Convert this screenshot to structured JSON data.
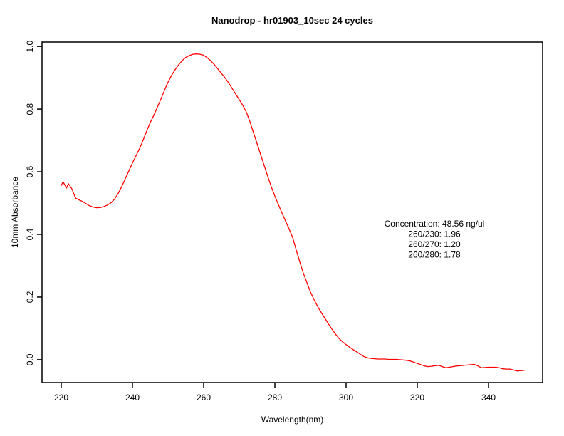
{
  "chart_data": {
    "type": "line",
    "title": "Nanodrop - hr01903_10sec 24 cycles",
    "xlabel": "Wavelength(nm)",
    "ylabel": "10mm Absorbance",
    "x_ticks": [
      220,
      240,
      260,
      280,
      300,
      320,
      340
    ],
    "y_ticks": [
      0,
      0.2,
      0.4,
      0.6,
      0.8,
      1.0
    ],
    "y_tick_labels": [
      "0.0",
      "0.2",
      "0.4",
      "0.6",
      "0.8",
      "1.0"
    ],
    "xlim": [
      214.6,
      355.2
    ],
    "ylim": [
      -0.073,
      1.014
    ],
    "grid": false,
    "legend": "none",
    "line_color": "#ff0000",
    "axis_color": "#000000",
    "background_color": "#ffffff",
    "series": [
      {
        "name": "absorbance",
        "x": [
          220,
          220.5,
          221,
          221.5,
          222,
          222.5,
          223,
          224,
          225,
          226,
          227,
          228,
          229,
          230,
          231,
          232,
          233,
          234,
          235,
          236,
          237,
          238,
          239,
          240,
          241,
          242,
          243,
          244,
          245,
          246,
          247,
          248,
          249,
          250,
          251,
          252,
          253,
          254,
          255,
          256,
          257,
          258,
          259,
          260,
          261,
          262,
          263,
          264,
          265,
          266,
          267,
          268,
          269,
          270,
          271,
          272,
          273,
          274,
          275,
          276,
          277,
          278,
          279,
          280,
          281,
          282,
          283,
          284,
          285,
          286,
          287,
          288,
          289,
          290,
          291,
          292,
          293,
          294,
          295,
          296,
          297,
          298,
          299,
          300,
          301,
          302,
          303,
          304,
          305,
          306,
          307,
          308,
          309,
          310,
          311,
          312,
          313,
          314,
          315,
          316,
          317,
          318,
          319,
          320,
          321,
          322,
          323,
          324,
          325,
          326,
          327,
          328,
          329,
          330,
          331,
          332,
          333,
          334,
          335,
          336,
          337,
          338,
          339,
          340,
          341,
          342,
          343,
          344,
          345,
          346,
          347,
          348,
          349,
          350
        ],
        "y": [
          0.556,
          0.568,
          0.558,
          0.548,
          0.562,
          0.554,
          0.545,
          0.516,
          0.51,
          0.505,
          0.498,
          0.491,
          0.487,
          0.485,
          0.486,
          0.489,
          0.494,
          0.501,
          0.513,
          0.531,
          0.553,
          0.578,
          0.603,
          0.628,
          0.651,
          0.674,
          0.701,
          0.73,
          0.757,
          0.78,
          0.806,
          0.832,
          0.86,
          0.886,
          0.908,
          0.926,
          0.942,
          0.955,
          0.965,
          0.971,
          0.975,
          0.976,
          0.975,
          0.972,
          0.964,
          0.954,
          0.942,
          0.928,
          0.914,
          0.9,
          0.884,
          0.866,
          0.848,
          0.83,
          0.812,
          0.79,
          0.76,
          0.724,
          0.69,
          0.655,
          0.62,
          0.585,
          0.552,
          0.522,
          0.495,
          0.468,
          0.443,
          0.417,
          0.39,
          0.35,
          0.312,
          0.276,
          0.246,
          0.216,
          0.192,
          0.17,
          0.151,
          0.133,
          0.115,
          0.098,
          0.082,
          0.068,
          0.057,
          0.048,
          0.04,
          0.032,
          0.025,
          0.017,
          0.01,
          0.006,
          0.004,
          0.003,
          0.002,
          0.002,
          0.002,
          0.001,
          0.001,
          0.001,
          0.0,
          -0.001,
          -0.002,
          -0.004,
          -0.008,
          -0.012,
          -0.016,
          -0.02,
          -0.022,
          -0.021,
          -0.019,
          -0.018,
          -0.022,
          -0.026,
          -0.024,
          -0.022,
          -0.02,
          -0.019,
          -0.018,
          -0.017,
          -0.016,
          -0.015,
          -0.02,
          -0.026,
          -0.025,
          -0.024,
          -0.024,
          -0.024,
          -0.026,
          -0.029,
          -0.03,
          -0.03,
          -0.033,
          -0.036,
          -0.035,
          -0.034
        ]
      }
    ],
    "annotation": {
      "lines": [
        "Concentration: 48.56 ng/ul",
        "260/230: 1.96",
        "260/270: 1.20",
        "260/280: 1.78"
      ]
    }
  }
}
